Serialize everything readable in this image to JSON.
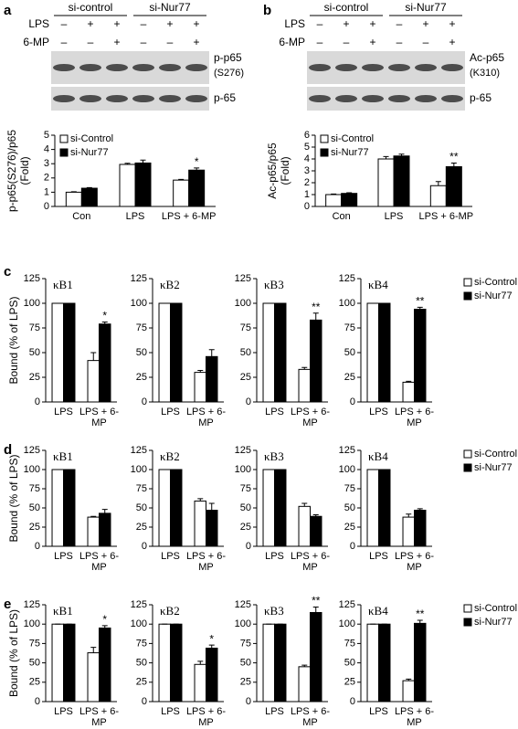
{
  "panel_letters": [
    "a",
    "b",
    "c",
    "d",
    "e"
  ],
  "blots": [
    {
      "groups": [
        "si-control",
        "si-Nur77"
      ],
      "treatments": [
        {
          "label": "LPS",
          "lanes": [
            "–",
            "+",
            "+",
            "–",
            "+",
            "+"
          ]
        },
        {
          "label": "6-MP",
          "lanes": [
            "–",
            "–",
            "+",
            "–",
            "–",
            "+"
          ]
        }
      ],
      "bands": [
        [
          "p-p65",
          "(S276)"
        ],
        [
          "p-65"
        ]
      ]
    },
    {
      "groups": [
        "si-control",
        "si-Nur77"
      ],
      "treatments": [
        {
          "label": "LPS",
          "lanes": [
            "–",
            "+",
            "+",
            "–",
            "+",
            "+"
          ]
        },
        {
          "label": "6-MP",
          "lanes": [
            "–",
            "–",
            "+",
            "–",
            "–",
            "+"
          ]
        }
      ],
      "bands": [
        [
          "Ac-p65",
          "(K310)"
        ],
        [
          "p-65"
        ]
      ]
    }
  ],
  "chart_data": [
    {
      "type": "bar",
      "ylabel": [
        "p-p65(S276)/p65",
        "(Fold)"
      ],
      "categories": [
        "Con",
        "LPS",
        "LPS + 6-MP"
      ],
      "ylim": [
        0,
        5
      ],
      "yticks": [
        0,
        1,
        2,
        3,
        4,
        5
      ],
      "legend": "upper left",
      "series": [
        {
          "name": "si-Control",
          "color": "#ffffff",
          "values": [
            1.0,
            2.95,
            1.85
          ],
          "errors": [
            0.03,
            0.08,
            0.05
          ],
          "annotations": [
            null,
            null,
            null
          ]
        },
        {
          "name": "si-Nur77",
          "color": "#000000",
          "values": [
            1.28,
            3.05,
            2.55
          ],
          "errors": [
            0.04,
            0.2,
            0.15
          ],
          "annotations": [
            null,
            null,
            "*"
          ]
        }
      ]
    },
    {
      "type": "bar",
      "ylabel": [
        "Ac-p65/p65",
        "(Fold)"
      ],
      "categories": [
        "Con",
        "LPS",
        "LPS + 6-MP"
      ],
      "ylim": [
        0,
        6
      ],
      "yticks": [
        0,
        1,
        2,
        3,
        4,
        5,
        6
      ],
      "legend": "upper left",
      "series": [
        {
          "name": "si-Control",
          "color": "#ffffff",
          "values": [
            1.0,
            4.0,
            1.75
          ],
          "errors": [
            0.05,
            0.2,
            0.35
          ],
          "annotations": [
            null,
            null,
            null
          ]
        },
        {
          "name": "si-Nur77",
          "color": "#000000",
          "values": [
            1.1,
            4.25,
            3.35
          ],
          "errors": [
            0.05,
            0.15,
            0.3
          ],
          "annotations": [
            null,
            null,
            "**"
          ]
        }
      ]
    },
    {
      "type": "bar",
      "title": "κB1",
      "ylabel": "Bound (% of LPS)",
      "categories": [
        "LPS",
        "LPS + 6-MP"
      ],
      "ylim": [
        0,
        125
      ],
      "yticks": [
        0,
        25,
        50,
        75,
        100,
        125
      ],
      "series": [
        {
          "color": "#ffffff",
          "values": [
            100,
            42
          ],
          "errors": [
            0,
            8
          ],
          "annotations": [
            null,
            null
          ]
        },
        {
          "color": "#000000",
          "values": [
            100,
            79
          ],
          "errors": [
            0,
            2
          ],
          "annotations": [
            null,
            "*"
          ]
        }
      ]
    },
    {
      "type": "bar",
      "title": "κB2",
      "categories": [
        "LPS",
        "LPS + 6-MP"
      ],
      "ylim": [
        0,
        125
      ],
      "yticks": [
        0,
        25,
        50,
        75,
        100,
        125
      ],
      "series": [
        {
          "color": "#ffffff",
          "values": [
            100,
            30
          ],
          "errors": [
            0,
            2
          ],
          "annotations": [
            null,
            null
          ]
        },
        {
          "color": "#000000",
          "values": [
            100,
            46
          ],
          "errors": [
            0,
            7
          ],
          "annotations": [
            null,
            null
          ]
        }
      ]
    },
    {
      "type": "bar",
      "title": "κB3",
      "categories": [
        "LPS",
        "LPS + 6-MP"
      ],
      "ylim": [
        0,
        125
      ],
      "yticks": [
        0,
        25,
        50,
        75,
        100,
        125
      ],
      "series": [
        {
          "color": "#ffffff",
          "values": [
            100,
            33
          ],
          "errors": [
            0,
            2
          ],
          "annotations": [
            null,
            null
          ]
        },
        {
          "color": "#000000",
          "values": [
            100,
            83
          ],
          "errors": [
            0,
            7
          ],
          "annotations": [
            null,
            "**"
          ]
        }
      ]
    },
    {
      "type": "bar",
      "title": "κB4",
      "categories": [
        "LPS",
        "LPS + 6-MP"
      ],
      "ylim": [
        0,
        125
      ],
      "yticks": [
        0,
        25,
        50,
        75,
        100,
        125
      ],
      "legend": "right",
      "series": [
        {
          "name": "si-Control",
          "color": "#ffffff",
          "values": [
            100,
            20
          ],
          "errors": [
            0,
            1
          ],
          "annotations": [
            null,
            null
          ]
        },
        {
          "name": "si-Nur77",
          "color": "#000000",
          "values": [
            100,
            94
          ],
          "errors": [
            0,
            2
          ],
          "annotations": [
            null,
            "**"
          ]
        }
      ]
    },
    {
      "type": "bar",
      "title": "κB1",
      "ylabel": "Bound (% of LPS)",
      "categories": [
        "LPS",
        "LPS + 6-MP"
      ],
      "ylim": [
        0,
        125
      ],
      "yticks": [
        0,
        25,
        50,
        75,
        100,
        125
      ],
      "series": [
        {
          "color": "#ffffff",
          "values": [
            100,
            38
          ],
          "errors": [
            0,
            1
          ],
          "annotations": [
            null,
            null
          ]
        },
        {
          "color": "#000000",
          "values": [
            100,
            43
          ],
          "errors": [
            0,
            5
          ],
          "annotations": [
            null,
            null
          ]
        }
      ]
    },
    {
      "type": "bar",
      "title": "κB2",
      "categories": [
        "LPS",
        "LPS + 6-MP"
      ],
      "ylim": [
        0,
        125
      ],
      "yticks": [
        0,
        25,
        50,
        75,
        100,
        125
      ],
      "series": [
        {
          "color": "#ffffff",
          "values": [
            100,
            59
          ],
          "errors": [
            0,
            3
          ],
          "annotations": [
            null,
            null
          ]
        },
        {
          "color": "#000000",
          "values": [
            100,
            47
          ],
          "errors": [
            0,
            9
          ],
          "annotations": [
            null,
            null
          ]
        }
      ]
    },
    {
      "type": "bar",
      "title": "κB3",
      "categories": [
        "LPS",
        "LPS + 6-MP"
      ],
      "ylim": [
        0,
        125
      ],
      "yticks": [
        0,
        25,
        50,
        75,
        100,
        125
      ],
      "series": [
        {
          "color": "#ffffff",
          "values": [
            100,
            52
          ],
          "errors": [
            0,
            4
          ],
          "annotations": [
            null,
            null
          ]
        },
        {
          "color": "#000000",
          "values": [
            100,
            39
          ],
          "errors": [
            0,
            2
          ],
          "annotations": [
            null,
            null
          ]
        }
      ]
    },
    {
      "type": "bar",
      "title": "κB4",
      "categories": [
        "LPS",
        "LPS + 6-MP"
      ],
      "ylim": [
        0,
        125
      ],
      "yticks": [
        0,
        25,
        50,
        75,
        100,
        125
      ],
      "legend": "right",
      "series": [
        {
          "name": "si-Control",
          "color": "#ffffff",
          "values": [
            100,
            38
          ],
          "errors": [
            0,
            4
          ],
          "annotations": [
            null,
            null
          ]
        },
        {
          "name": "si-Nur77",
          "color": "#000000",
          "values": [
            100,
            47
          ],
          "errors": [
            0,
            2
          ],
          "annotations": [
            null,
            null
          ]
        }
      ]
    },
    {
      "type": "bar",
      "title": "κB1",
      "ylabel": "Bound (% of LPS)",
      "categories": [
        "LPS",
        "LPS + 6-MP"
      ],
      "ylim": [
        0,
        125
      ],
      "yticks": [
        0,
        25,
        50,
        75,
        100,
        125
      ],
      "series": [
        {
          "color": "#ffffff",
          "values": [
            100,
            63
          ],
          "errors": [
            0,
            7
          ],
          "annotations": [
            null,
            null
          ]
        },
        {
          "color": "#000000",
          "values": [
            100,
            95
          ],
          "errors": [
            0,
            3
          ],
          "annotations": [
            null,
            "*"
          ]
        }
      ]
    },
    {
      "type": "bar",
      "title": "κB2",
      "categories": [
        "LPS",
        "LPS + 6-MP"
      ],
      "ylim": [
        0,
        125
      ],
      "yticks": [
        0,
        25,
        50,
        75,
        100,
        125
      ],
      "series": [
        {
          "color": "#ffffff",
          "values": [
            100,
            48
          ],
          "errors": [
            0,
            4
          ],
          "annotations": [
            null,
            null
          ]
        },
        {
          "color": "#000000",
          "values": [
            100,
            69
          ],
          "errors": [
            0,
            4
          ],
          "annotations": [
            null,
            "*"
          ]
        }
      ]
    },
    {
      "type": "bar",
      "title": "κB3",
      "categories": [
        "LPS",
        "LPS + 6-MP"
      ],
      "ylim": [
        0,
        125
      ],
      "yticks": [
        0,
        25,
        50,
        75,
        100,
        125
      ],
      "series": [
        {
          "color": "#ffffff",
          "values": [
            100,
            45
          ],
          "errors": [
            0,
            2
          ],
          "annotations": [
            null,
            null
          ]
        },
        {
          "color": "#000000",
          "values": [
            100,
            115
          ],
          "errors": [
            0,
            7
          ],
          "annotations": [
            null,
            "**"
          ]
        }
      ]
    },
    {
      "type": "bar",
      "title": "κB4",
      "categories": [
        "LPS",
        "LPS + 6-MP"
      ],
      "ylim": [
        0,
        125
      ],
      "yticks": [
        0,
        25,
        50,
        75,
        100,
        125
      ],
      "legend": "right",
      "series": [
        {
          "name": "si-Control",
          "color": "#ffffff",
          "values": [
            100,
            27
          ],
          "errors": [
            0,
            2
          ],
          "annotations": [
            null,
            null
          ]
        },
        {
          "name": "si-Nur77",
          "color": "#000000",
          "values": [
            100,
            101
          ],
          "errors": [
            0,
            4
          ],
          "annotations": [
            null,
            "**"
          ]
        }
      ]
    }
  ]
}
